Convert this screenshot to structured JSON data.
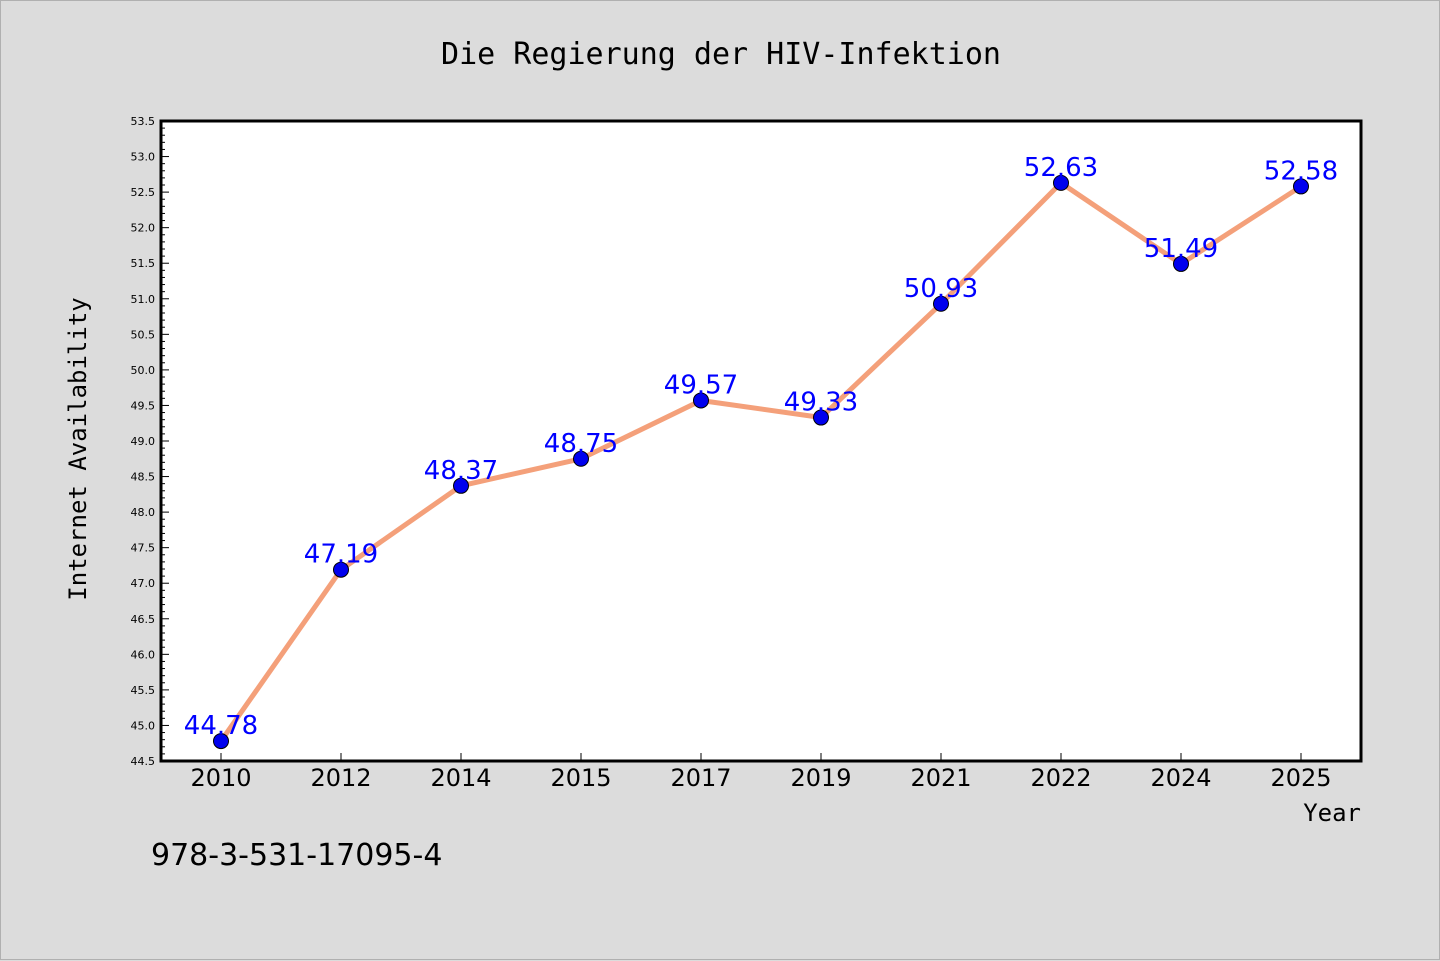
{
  "chart_data": {
    "type": "line",
    "title": "Die Regierung der HIV-Infektion",
    "xlabel": "Year",
    "ylabel": "Internet Availability",
    "categories": [
      "2010",
      "2012",
      "2014",
      "2015",
      "2017",
      "2019",
      "2021",
      "2022",
      "2024",
      "2025"
    ],
    "series": [
      {
        "values": [
          44.78,
          47.19,
          48.37,
          48.75,
          49.57,
          49.33,
          50.93,
          52.63,
          51.49,
          52.58
        ],
        "labels": [
          "44.78",
          "47.19",
          "48.37",
          "48.75",
          "49.57",
          "49.33",
          "50.93",
          "52.63",
          "51.49",
          "52.58"
        ],
        "line_color": "#f4a07a",
        "marker_color": "#0000ee"
      }
    ],
    "ylim": [
      44.5,
      53.5
    ],
    "y_ticks": [
      "44.5",
      "45.0",
      "45.5",
      "46.0",
      "46.5",
      "47.0",
      "47.5",
      "48.0",
      "48.5",
      "49.0",
      "49.5",
      "50.0",
      "50.5",
      "51.0",
      "51.5",
      "52.0",
      "52.5",
      "53.0",
      "53.5"
    ],
    "grid": false,
    "label_color": "#0000ff",
    "background": "#dcdcdc",
    "plot_background": "#ffffff"
  },
  "footer": {
    "isbn": "978-3-531-17095-4"
  }
}
